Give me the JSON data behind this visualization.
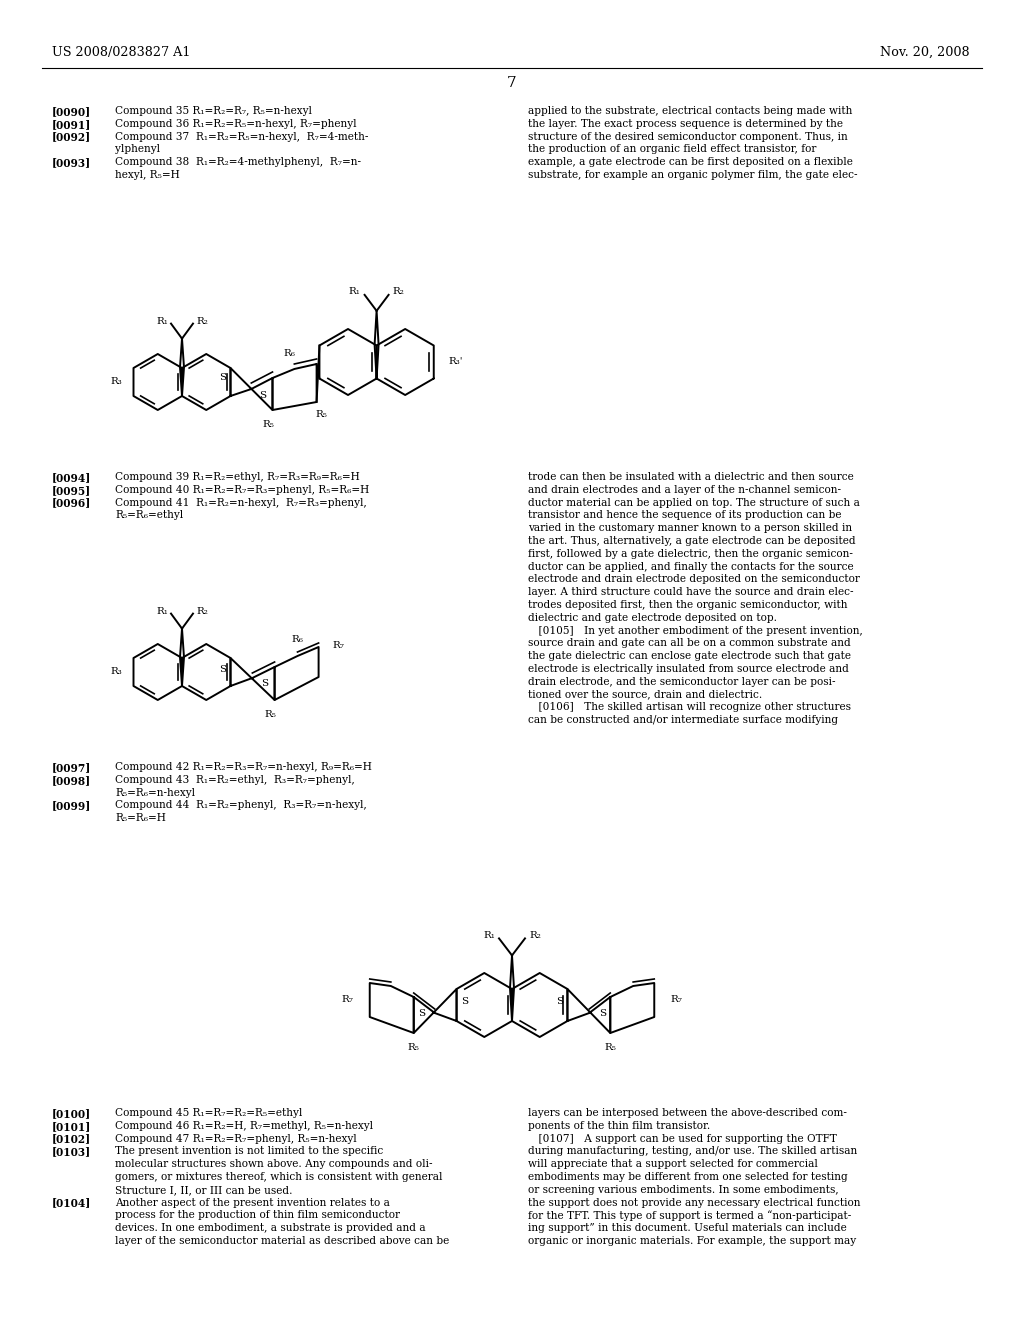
{
  "bg": "#ffffff",
  "black": "#000000",
  "header_left": "US 2008/0283827 A1",
  "header_right": "Nov. 20, 2008",
  "page_num": "7"
}
